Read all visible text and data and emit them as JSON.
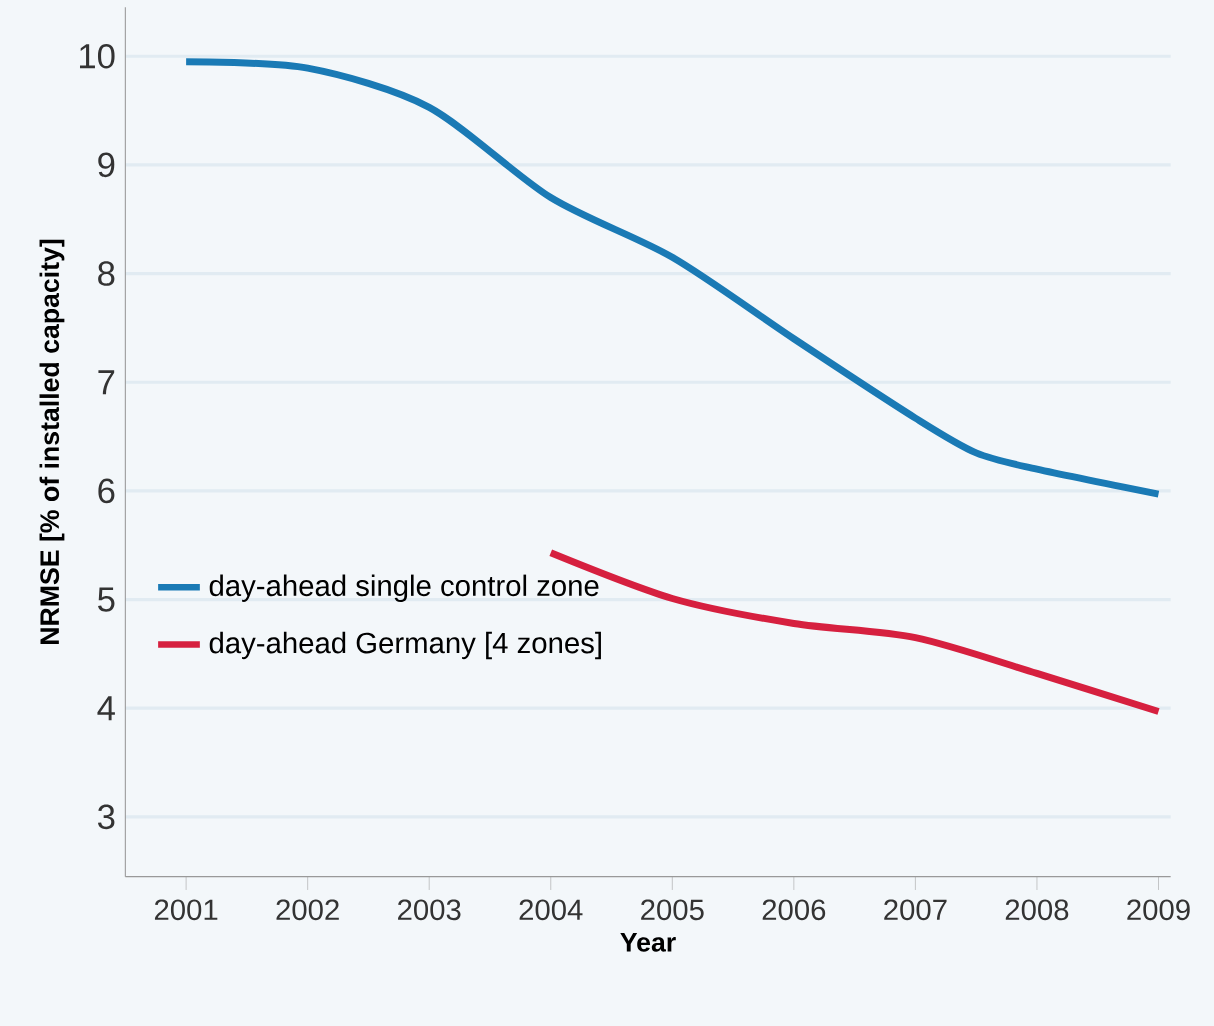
{
  "chart_data": {
    "type": "line",
    "xlabel": "Year",
    "ylabel": "NRMSE [% of installed capacity]",
    "xlim": [
      2000.5,
      2009.1
    ],
    "xticks": [
      2001,
      2002,
      2003,
      2004,
      2005,
      2006,
      2007,
      2008,
      2009
    ],
    "ylim": [
      2.45,
      10.45
    ],
    "yticks": [
      3,
      4,
      5,
      6,
      7,
      8,
      9,
      10
    ],
    "grid": "y",
    "legend": "left",
    "series": [
      {
        "name": "day-ahead single control zone",
        "color": "#1a7ab5",
        "x": [
          2001,
          2002,
          2003,
          2004,
          2005,
          2006,
          2007,
          2007.5,
          2008,
          2009
        ],
        "values": [
          9.95,
          9.89,
          9.53,
          8.7,
          8.15,
          7.4,
          6.67,
          6.35,
          6.2,
          5.97
        ]
      },
      {
        "name": "day-ahead Germany [4 zones]",
        "color": "#d6203f",
        "x": [
          2004,
          2005,
          2006,
          2007,
          2008,
          2009
        ],
        "values": [
          5.43,
          5.01,
          4.78,
          4.65,
          4.32,
          3.97
        ]
      }
    ]
  }
}
